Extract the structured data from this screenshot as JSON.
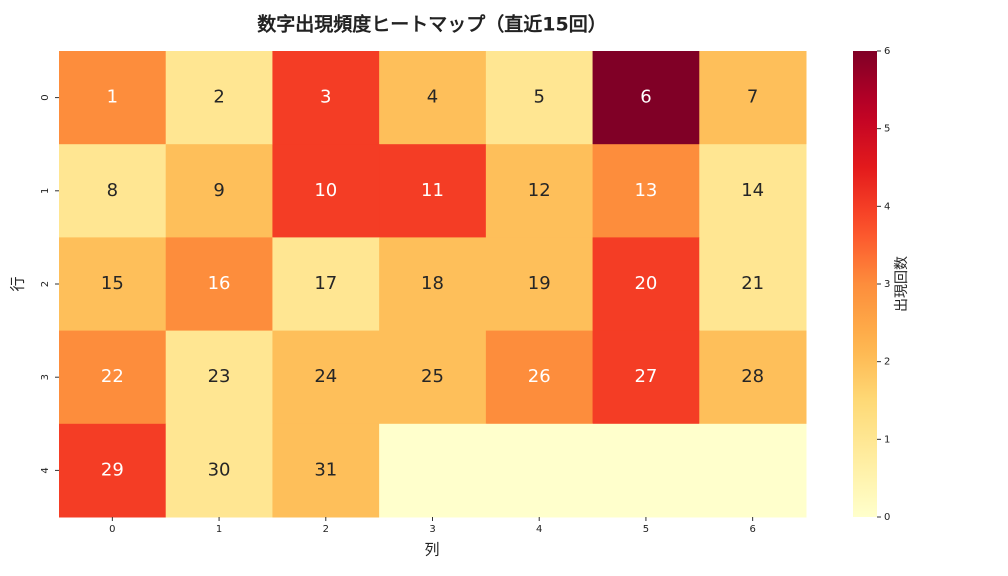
{
  "chart_data": {
    "type": "heatmap",
    "title": "数字出現頻度ヒートマップ（直近15回）",
    "x_label": "列",
    "y_label": "行",
    "x_categories": [
      0,
      1,
      2,
      3,
      4,
      5,
      6
    ],
    "y_categories": [
      0,
      1,
      2,
      3,
      4
    ],
    "values": [
      [
        3,
        1,
        4,
        2,
        1,
        6,
        2
      ],
      [
        1,
        2,
        4,
        4,
        2,
        3,
        1
      ],
      [
        2,
        3,
        1,
        2,
        2,
        4,
        1
      ],
      [
        3,
        1,
        2,
        2,
        3,
        4,
        2
      ],
      [
        4,
        1,
        2,
        0,
        0,
        0,
        0
      ]
    ],
    "annotations": [
      [
        1,
        2,
        3,
        4,
        5,
        6,
        7
      ],
      [
        8,
        9,
        10,
        11,
        12,
        13,
        14
      ],
      [
        15,
        16,
        17,
        18,
        19,
        20,
        21
      ],
      [
        22,
        23,
        24,
        25,
        26,
        27,
        28
      ],
      [
        29,
        30,
        31,
        null,
        null,
        null,
        null
      ]
    ],
    "colormap": "YlOrRd",
    "clim": [
      0,
      6
    ],
    "colorbar_ticks": [
      0,
      1,
      2,
      3,
      4,
      5,
      6
    ],
    "colorbar_label": "出現回数"
  }
}
